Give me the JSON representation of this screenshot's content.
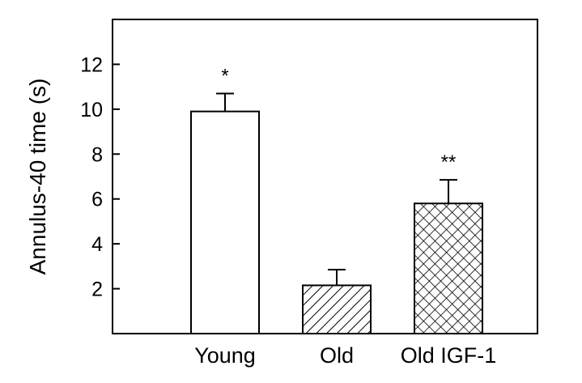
{
  "chart_data": {
    "type": "bar",
    "title": "",
    "xlabel": "",
    "ylabel": "Annulus-40 time (s)",
    "categories": [
      "Young",
      "Old",
      "Old IGF-1"
    ],
    "values": [
      9.9,
      2.15,
      5.8
    ],
    "errors": [
      0.8,
      0.7,
      1.05
    ],
    "significance": [
      "*",
      "",
      "**"
    ],
    "fills": [
      "plain",
      "diagonal-hatch",
      "cross-hatch"
    ],
    "ylim": [
      0,
      14
    ],
    "yticks": [
      2,
      4,
      6,
      8,
      10,
      12
    ],
    "grid": false,
    "legend": "none"
  },
  "colors": {
    "bar_fill": "#ffffff",
    "stroke": "#000000",
    "background": "#ffffff"
  }
}
